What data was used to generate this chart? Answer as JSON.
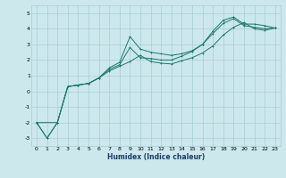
{
  "title": "",
  "xlabel": "Humidex (Indice chaleur)",
  "bg_color": "#cce8ec",
  "grid_color": "#a8cdd4",
  "line_color": "#1a7a6a",
  "xlim": [
    -0.5,
    23.5
  ],
  "ylim": [
    -3.5,
    5.5
  ],
  "xticks": [
    0,
    1,
    2,
    3,
    4,
    5,
    6,
    7,
    8,
    9,
    10,
    11,
    12,
    13,
    14,
    15,
    16,
    17,
    18,
    19,
    20,
    21,
    22,
    23
  ],
  "yticks": [
    -3,
    -2,
    -1,
    0,
    1,
    2,
    3,
    4,
    5
  ],
  "series1_x": [
    0,
    1,
    2,
    3,
    4,
    5,
    6,
    7,
    8,
    9,
    10,
    11,
    12,
    13,
    14,
    15,
    16,
    17,
    18,
    19,
    20,
    21,
    22,
    23
  ],
  "series1_y": [
    -2.0,
    -3.0,
    -2.0,
    0.3,
    0.4,
    0.5,
    0.85,
    1.5,
    1.85,
    3.5,
    2.7,
    2.5,
    2.4,
    2.3,
    2.4,
    2.6,
    3.0,
    3.85,
    4.55,
    4.75,
    4.3,
    4.3,
    4.2,
    4.05
  ],
  "series2_x": [
    0,
    1,
    2,
    3,
    4,
    5,
    6,
    7,
    8,
    9,
    10,
    11,
    12,
    13,
    14,
    15,
    16,
    17,
    18,
    19,
    20,
    21,
    22,
    23
  ],
  "series2_y": [
    -2.0,
    -3.0,
    -2.0,
    0.3,
    0.4,
    0.5,
    0.85,
    1.4,
    1.7,
    2.8,
    2.15,
    2.1,
    2.0,
    2.0,
    2.25,
    2.55,
    3.0,
    3.7,
    4.35,
    4.65,
    4.2,
    4.1,
    4.0,
    4.05
  ],
  "series3_x": [
    0,
    2,
    3,
    4,
    5,
    6,
    7,
    8,
    9,
    10,
    11,
    12,
    13,
    14,
    15,
    16,
    17,
    18,
    19,
    20,
    21,
    22,
    23
  ],
  "series3_y": [
    -2.0,
    -2.0,
    0.3,
    0.4,
    0.5,
    0.85,
    1.3,
    1.6,
    1.9,
    2.3,
    1.9,
    1.8,
    1.75,
    1.95,
    2.15,
    2.45,
    2.9,
    3.6,
    4.1,
    4.4,
    4.0,
    3.9,
    4.05
  ]
}
